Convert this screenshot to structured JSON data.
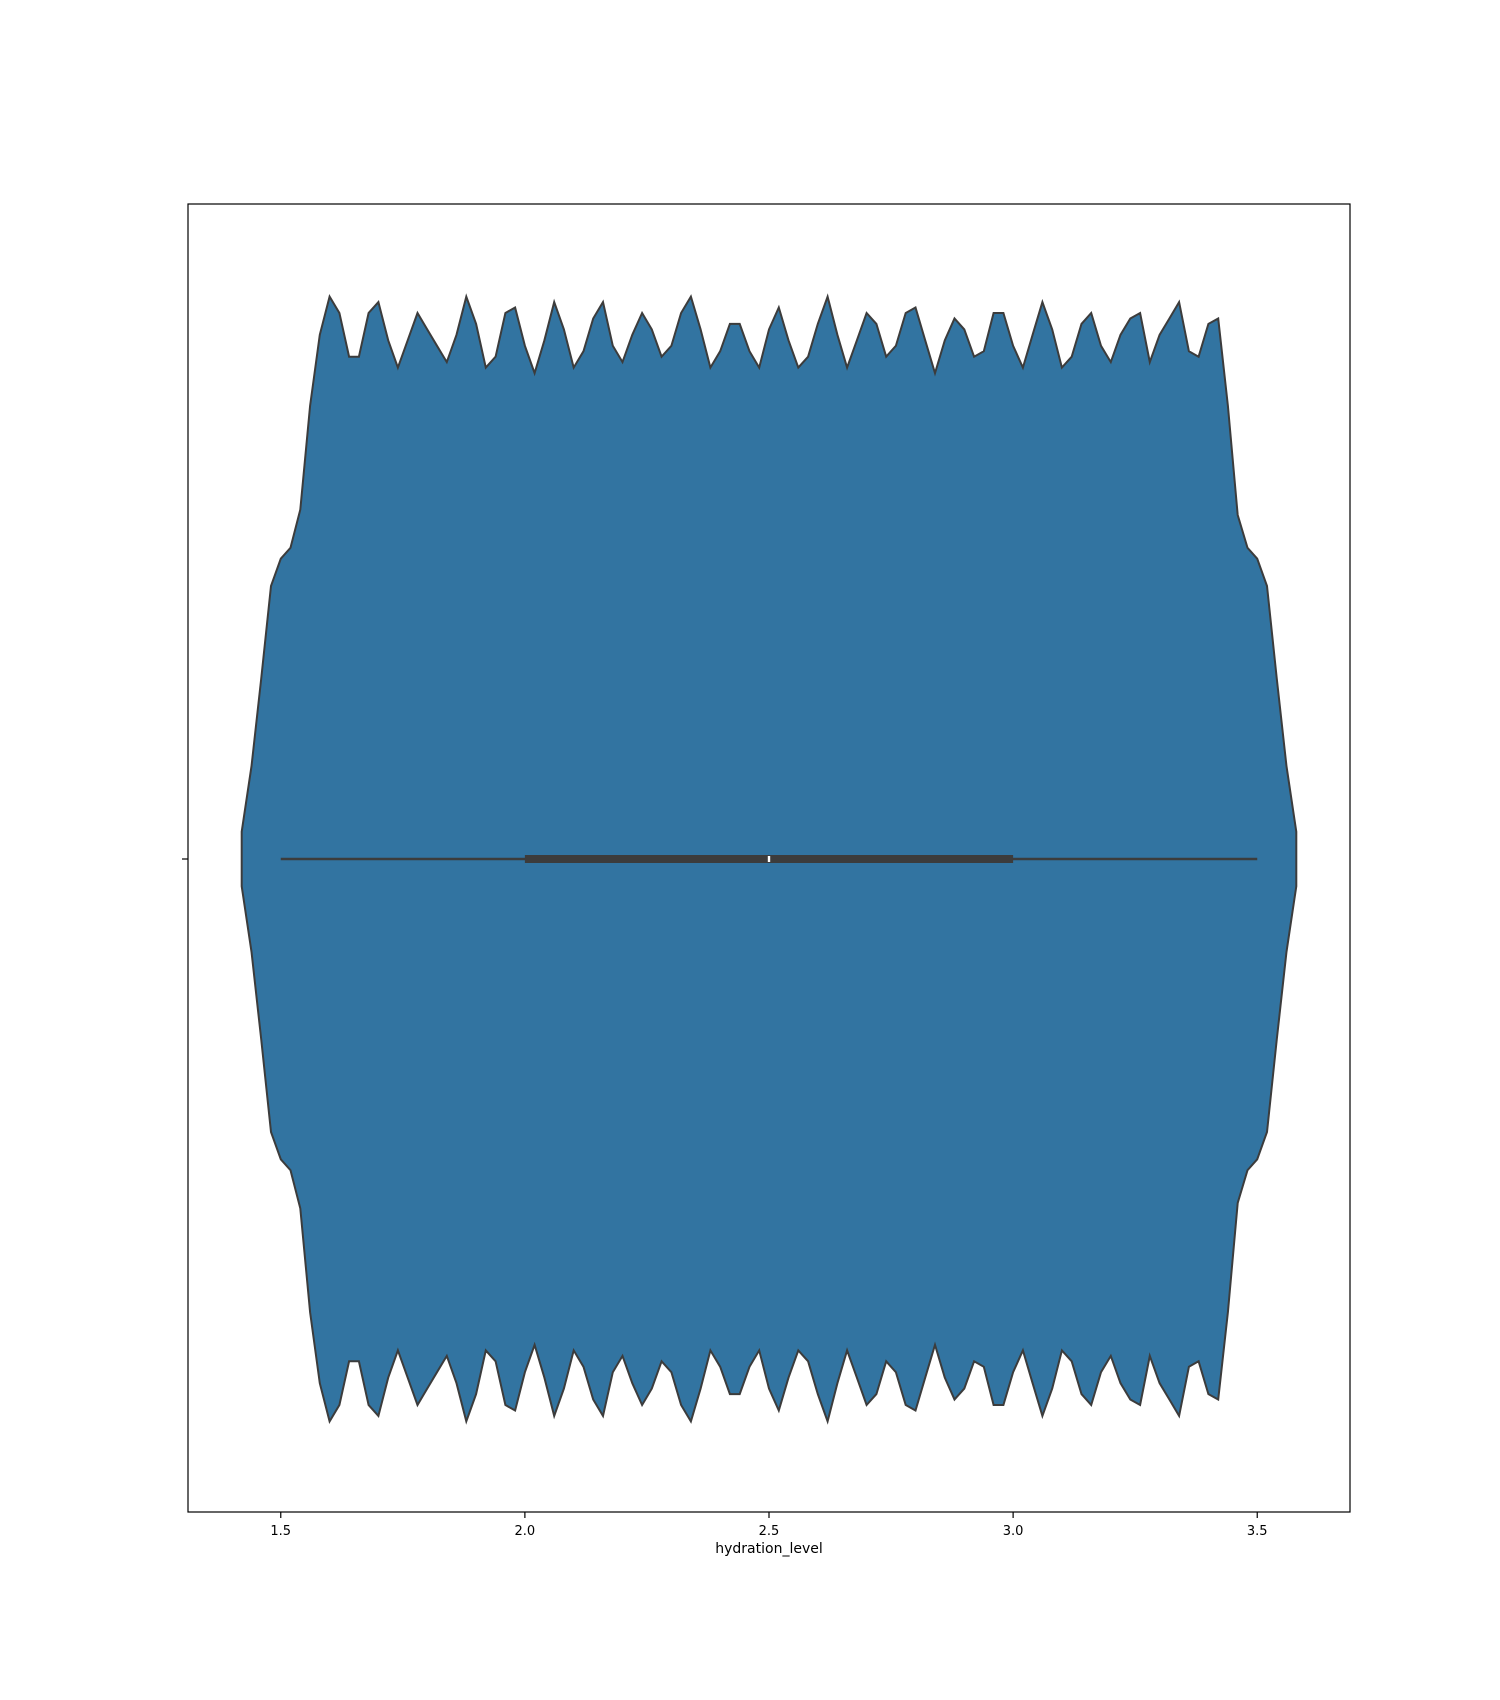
{
  "chart_data": {
    "type": "violin",
    "orientation": "horizontal",
    "xlabel": "hydration_level",
    "ylabel": "",
    "title": "",
    "xlim": [
      1.31,
      3.69
    ],
    "x_ticks": [
      1.5,
      2.0,
      2.5,
      3.0,
      3.5
    ],
    "x_tick_labels": [
      "1.5",
      "2.0",
      "2.5",
      "3.0",
      "3.5"
    ],
    "grid": false,
    "legend": "none",
    "color": "#3274a1",
    "edge_color": "#3c3c3c",
    "box": {
      "whisker_low": 1.5,
      "q1": 2.0,
      "median": 2.5,
      "q3": 3.0,
      "whisker_high": 3.5
    },
    "density_profile": {
      "x": [
        1.42,
        1.44,
        1.46,
        1.48,
        1.5,
        1.52,
        1.54,
        1.56,
        1.58,
        1.6,
        1.62,
        1.64,
        1.66,
        1.68,
        1.7,
        1.72,
        1.74,
        1.76,
        1.78,
        1.8,
        1.82,
        1.84,
        1.86,
        1.88,
        1.9,
        1.92,
        1.94,
        1.96,
        1.98,
        2.0,
        2.02,
        2.04,
        2.06,
        2.08,
        2.1,
        2.12,
        2.14,
        2.16,
        2.18,
        2.2,
        2.22,
        2.24,
        2.26,
        2.28,
        2.3,
        2.32,
        2.34,
        2.36,
        2.38,
        2.4,
        2.42,
        2.44,
        2.46,
        2.48,
        2.5,
        2.52,
        2.54,
        2.56,
        2.58,
        2.6,
        2.62,
        2.64,
        2.66,
        2.68,
        2.7,
        2.72,
        2.74,
        2.76,
        2.78,
        2.8,
        2.82,
        2.84,
        2.86,
        2.88,
        2.9,
        2.92,
        2.94,
        2.96,
        2.98,
        3.0,
        3.02,
        3.04,
        3.06,
        3.08,
        3.1,
        3.12,
        3.14,
        3.16,
        3.18,
        3.2,
        3.22,
        3.24,
        3.26,
        3.28,
        3.3,
        3.32,
        3.34,
        3.36,
        3.38,
        3.4,
        3.42,
        3.44,
        3.46,
        3.48,
        3.5,
        3.52,
        3.54,
        3.56,
        3.58
      ],
      "density": [
        0.05,
        0.17,
        0.33,
        0.5,
        0.55,
        0.57,
        0.64,
        0.83,
        0.96,
        1.03,
        1.0,
        0.92,
        0.92,
        1.0,
        1.02,
        0.95,
        0.9,
        0.95,
        1.0,
        0.97,
        0.94,
        0.91,
        0.96,
        1.03,
        0.98,
        0.9,
        0.92,
        1.0,
        1.01,
        0.94,
        0.89,
        0.95,
        1.02,
        0.97,
        0.9,
        0.93,
        0.99,
        1.02,
        0.94,
        0.91,
        0.96,
        1.0,
        0.97,
        0.92,
        0.94,
        1.0,
        1.03,
        0.97,
        0.9,
        0.93,
        0.98,
        0.98,
        0.93,
        0.9,
        0.97,
        1.01,
        0.95,
        0.9,
        0.92,
        0.98,
        1.03,
        0.96,
        0.9,
        0.95,
        1.0,
        0.98,
        0.92,
        0.94,
        1.0,
        1.01,
        0.95,
        0.89,
        0.95,
        0.99,
        0.97,
        0.92,
        0.93,
        1.0,
        1.0,
        0.94,
        0.9,
        0.96,
        1.02,
        0.97,
        0.9,
        0.92,
        0.98,
        1.0,
        0.94,
        0.91,
        0.96,
        0.99,
        1.0,
        0.91,
        0.96,
        0.99,
        1.02,
        0.93,
        0.92,
        0.98,
        0.99,
        0.83,
        0.63,
        0.57,
        0.55,
        0.5,
        0.33,
        0.17,
        0.05
      ]
    }
  }
}
